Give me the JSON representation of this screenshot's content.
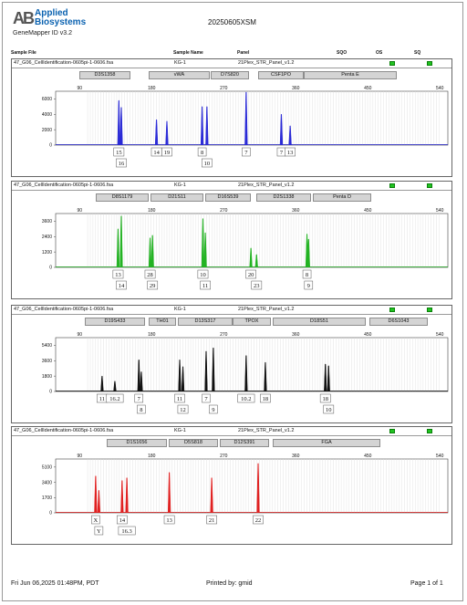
{
  "header": {
    "logo_mark": "AB",
    "logo_line1": "Applied",
    "logo_line2": "Biosystems",
    "app_name": "GeneMapper ID v3.2",
    "doc_title": "20250605XSM"
  },
  "columns": [
    "Sample File",
    "Sample Name",
    "Panel",
    "SQO",
    "OS",
    "SQ"
  ],
  "footer": {
    "date": "Fri Jun 06,2025 01:48PM, PDT",
    "printed_by": "Printed by: gmid",
    "page": "Page 1 of 1"
  },
  "panels": [
    {
      "sample_file": "47_G06_CellIdentification-0605pi-1-0606.fsa",
      "sample_name": "KG-1",
      "panel": "21Plex_STR_Panel_v1.2",
      "loci": [
        "D3S1358",
        "vWA",
        "D7S820",
        "CSF1PO",
        "Penta E"
      ]
    },
    {
      "sample_file": "47_G06_CellIdentification-0605pi-1-0606.fsa",
      "sample_name": "KG-1",
      "panel": "21Plex_STR_Panel_v1.2",
      "loci": [
        "D8S1179",
        "D21S11",
        "D16S539",
        "D2S1338",
        "Penta D"
      ]
    },
    {
      "sample_file": "47_G06_CellIdentification-0605pi-1-0606.fsa",
      "sample_name": "KG-1",
      "panel": "21Plex_STR_Panel_v1.2",
      "loci": [
        "D19S433",
        "TH01",
        "D13S317",
        "TPOX",
        "D18S51",
        "D6S1043"
      ]
    },
    {
      "sample_file": "47_G06_CellIdentification-0605pi-1-0606.fsa",
      "sample_name": "KG-1",
      "panel": "21Plex_STR_Panel_v1.2",
      "loci": [
        "D1S1656",
        "D5S818",
        "D12S391",
        "FGA"
      ]
    }
  ],
  "chart_data": [
    {
      "type": "line",
      "color": "#2a2ad6",
      "x_ticks": [
        90,
        180,
        270,
        360,
        450,
        540
      ],
      "y_ticks": [
        0,
        2000,
        4000,
        6000
      ],
      "ylim": [
        0,
        7000
      ],
      "peaks": [
        {
          "x": 139,
          "y": 5800
        },
        {
          "x": 142,
          "y": 4900
        },
        {
          "x": 186,
          "y": 3300
        },
        {
          "x": 199,
          "y": 3100
        },
        {
          "x": 243,
          "y": 5000
        },
        {
          "x": 249,
          "y": 5000
        },
        {
          "x": 298,
          "y": 7600
        },
        {
          "x": 342,
          "y": 4000
        },
        {
          "x": 353,
          "y": 2500
        }
      ],
      "allele_labels": [
        {
          "x": 139,
          "row": 0,
          "text": "15"
        },
        {
          "x": 142,
          "row": 1,
          "text": "16"
        },
        {
          "x": 186,
          "row": 0,
          "text": "14"
        },
        {
          "x": 199,
          "row": 0,
          "text": "19"
        },
        {
          "x": 243,
          "row": 0,
          "text": "8"
        },
        {
          "x": 249,
          "row": 1,
          "text": "10"
        },
        {
          "x": 298,
          "row": 0,
          "text": "7"
        },
        {
          "x": 342,
          "row": 0,
          "text": "7"
        },
        {
          "x": 353,
          "row": 0,
          "text": "13"
        }
      ]
    },
    {
      "type": "line",
      "color": "#23b323",
      "x_ticks": [
        90,
        180,
        270,
        360,
        450,
        540
      ],
      "y_ticks": [
        0,
        1200,
        2400,
        3600
      ],
      "ylim": [
        0,
        4200
      ],
      "peaks": [
        {
          "x": 138,
          "y": 3000
        },
        {
          "x": 142,
          "y": 4000
        },
        {
          "x": 178,
          "y": 2300
        },
        {
          "x": 181,
          "y": 2500
        },
        {
          "x": 244,
          "y": 3800
        },
        {
          "x": 247,
          "y": 2700
        },
        {
          "x": 304,
          "y": 1500
        },
        {
          "x": 311,
          "y": 1000
        },
        {
          "x": 374,
          "y": 2600
        },
        {
          "x": 376,
          "y": 2200
        }
      ],
      "allele_labels": [
        {
          "x": 138,
          "row": 0,
          "text": "13"
        },
        {
          "x": 142,
          "row": 1,
          "text": "14"
        },
        {
          "x": 178,
          "row": 0,
          "text": "28"
        },
        {
          "x": 181,
          "row": 1,
          "text": "29"
        },
        {
          "x": 244,
          "row": 0,
          "text": "10"
        },
        {
          "x": 247,
          "row": 1,
          "text": "11"
        },
        {
          "x": 304,
          "row": 0,
          "text": "20"
        },
        {
          "x": 311,
          "row": 1,
          "text": "23"
        },
        {
          "x": 374,
          "row": 0,
          "text": "8"
        },
        {
          "x": 376,
          "row": 1,
          "text": "9"
        }
      ]
    },
    {
      "type": "line",
      "color": "#111111",
      "x_ticks": [
        90,
        180,
        270,
        360,
        450,
        540
      ],
      "y_ticks": [
        0,
        1800,
        3600,
        5400
      ],
      "ylim": [
        0,
        6300
      ],
      "peaks": [
        {
          "x": 118,
          "y": 1800
        },
        {
          "x": 134,
          "y": 1200
        },
        {
          "x": 164,
          "y": 3700
        },
        {
          "x": 167,
          "y": 2300
        },
        {
          "x": 215,
          "y": 3700
        },
        {
          "x": 219,
          "y": 2900
        },
        {
          "x": 248,
          "y": 4700
        },
        {
          "x": 257,
          "y": 5100
        },
        {
          "x": 298,
          "y": 4200
        },
        {
          "x": 322,
          "y": 3400
        },
        {
          "x": 397,
          "y": 3200
        },
        {
          "x": 401,
          "y": 3000
        }
      ],
      "allele_labels": [
        {
          "x": 118,
          "row": 0,
          "text": "11"
        },
        {
          "x": 134,
          "row": 0,
          "text": "16.2"
        },
        {
          "x": 164,
          "row": 0,
          "text": "7"
        },
        {
          "x": 167,
          "row": 1,
          "text": "8"
        },
        {
          "x": 215,
          "row": 0,
          "text": "11"
        },
        {
          "x": 219,
          "row": 1,
          "text": "12"
        },
        {
          "x": 248,
          "row": 0,
          "text": "7"
        },
        {
          "x": 257,
          "row": 1,
          "text": "9"
        },
        {
          "x": 298,
          "row": 0,
          "text": "10.2"
        },
        {
          "x": 322,
          "row": 0,
          "text": "18"
        },
        {
          "x": 397,
          "row": 0,
          "text": "18"
        },
        {
          "x": 401,
          "row": 1,
          "text": "10"
        }
      ]
    },
    {
      "type": "line",
      "color": "#e02020",
      "x_ticks": [
        90,
        180,
        270,
        360,
        450,
        540
      ],
      "y_ticks": [
        0,
        1700,
        3400,
        5100
      ],
      "ylim": [
        0,
        6000
      ],
      "peaks": [
        {
          "x": 110,
          "y": 4100
        },
        {
          "x": 114,
          "y": 2500
        },
        {
          "x": 143,
          "y": 3600
        },
        {
          "x": 149,
          "y": 3900
        },
        {
          "x": 202,
          "y": 4500
        },
        {
          "x": 255,
          "y": 3900
        },
        {
          "x": 313,
          "y": 5500
        }
      ],
      "allele_labels": [
        {
          "x": 110,
          "row": 0,
          "text": "X"
        },
        {
          "x": 114,
          "row": 1,
          "text": "Y"
        },
        {
          "x": 143,
          "row": 0,
          "text": "14"
        },
        {
          "x": 149,
          "row": 1,
          "text": "16.3"
        },
        {
          "x": 202,
          "row": 0,
          "text": "13"
        },
        {
          "x": 255,
          "row": 0,
          "text": "21"
        },
        {
          "x": 313,
          "row": 0,
          "text": "22"
        }
      ]
    }
  ]
}
